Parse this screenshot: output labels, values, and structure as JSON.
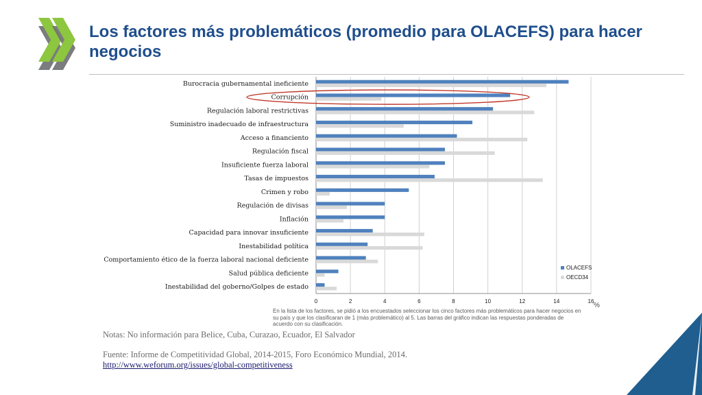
{
  "slide": {
    "title": "Los factores más problemáticos (promedio para OLACEFS) para hacer negocios",
    "unit_label": "%",
    "footnote": "En la lista de los factores, se pidió a los encuestados seleccionar los cinco factores más problemáticos para hacer negocios en su país y que los clasificaran de 1 (más problemático) al 5. Las barras del gráfico indican las respuestas ponderadas de acuerdo con su clasificación.",
    "notes": "Notas: No información para Belice, Cuba, Curazao, Ecuador, El Salvador",
    "source": "Fuente: Informe de Competitividad Global, 2014-2015, Foro Económico Mundial, 2014.",
    "link": "http://www.weforum.org/issues/global-competitiveness",
    "colors": {
      "title": "#1f4e8c",
      "logo": "#8dc63f",
      "logo_shadow": "#6d6e71",
      "corner": "#1f5e8f"
    }
  },
  "chart_data": {
    "type": "bar",
    "orientation": "horizontal",
    "categories": [
      "Burocracia gubernamental ineficiente",
      "Corrupción",
      "Regulación laboral restrictivas",
      "Suministro inadecuado de infraestructura",
      "Acceso a financiento",
      "Regulación fiscal",
      "Insuficiente fuerza laboral",
      "Tasas de impuestos",
      "Crimen y robo",
      "Regulación de divisas",
      "Inflación",
      "Capacidad para innovar insuficiente",
      "Inestabilidad política",
      "Comportamiento ético de la fuerza laboral nacional deficiente",
      "Salud pública deficiente",
      "Inestabilidad del goberno/Golpes de estado"
    ],
    "series": [
      {
        "name": "OLACEFS",
        "color": "#4f81bd",
        "values": [
          14.7,
          11.3,
          10.3,
          9.1,
          8.2,
          7.5,
          7.5,
          6.9,
          5.4,
          4.0,
          4.0,
          3.3,
          3.0,
          2.9,
          1.3,
          0.5
        ]
      },
      {
        "name": "OECD34",
        "color": "#d9d9d9",
        "values": [
          13.4,
          3.8,
          12.7,
          5.1,
          12.3,
          10.4,
          6.6,
          13.2,
          0.8,
          1.8,
          1.6,
          6.3,
          6.2,
          3.6,
          0.5,
          1.2
        ]
      }
    ],
    "xlim": [
      0,
      16
    ],
    "xticks": [
      0,
      2,
      4,
      6,
      8,
      10,
      12,
      14,
      16
    ],
    "grid": true,
    "legend": "bottom-right",
    "highlight": "Corrupción"
  }
}
